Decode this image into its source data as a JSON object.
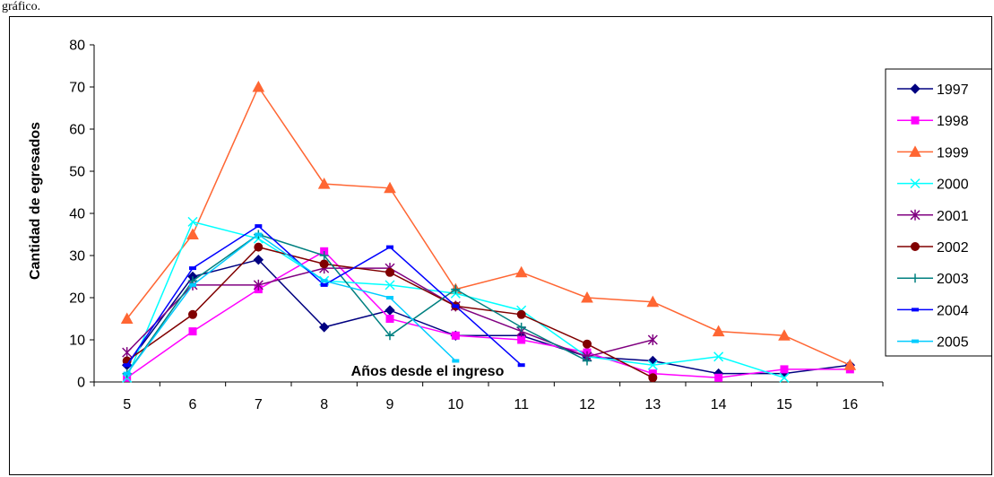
{
  "caption": "gráfico.",
  "chart_data": {
    "type": "line",
    "xlabel": "Años desde el ingreso",
    "ylabel": "Cantidad de egresados",
    "x": [
      5,
      6,
      7,
      8,
      9,
      10,
      11,
      12,
      13,
      14,
      15,
      16
    ],
    "ylim": [
      0,
      80
    ],
    "yticks": [
      0,
      10,
      20,
      30,
      40,
      50,
      60,
      70,
      80
    ],
    "grid": false,
    "legend_position": "right",
    "series": [
      {
        "name": "1997",
        "color": "#000080",
        "marker": "diamond",
        "values": [
          4,
          25,
          29,
          13,
          17,
          11,
          11,
          6,
          5,
          2,
          2,
          4
        ]
      },
      {
        "name": "1998",
        "color": "#ff00ff",
        "marker": "square",
        "values": [
          1,
          12,
          22,
          31,
          15,
          11,
          10,
          7,
          2,
          1,
          3,
          3
        ]
      },
      {
        "name": "1999",
        "color": "#ff6633",
        "marker": "triangle",
        "values": [
          15,
          35,
          70,
          47,
          46,
          22,
          26,
          20,
          19,
          12,
          11,
          4
        ]
      },
      {
        "name": "2000",
        "color": "#00ffff",
        "marker": "x",
        "values": [
          1,
          38,
          34,
          24,
          23,
          21,
          17,
          6,
          4,
          6,
          1,
          null
        ]
      },
      {
        "name": "2001",
        "color": "#800080",
        "marker": "star",
        "values": [
          7,
          23,
          23,
          27,
          27,
          18,
          12,
          6,
          10,
          null,
          null,
          null
        ]
      },
      {
        "name": "2002",
        "color": "#800000",
        "marker": "circle",
        "values": [
          5,
          16,
          32,
          28,
          26,
          18,
          16,
          9,
          1,
          null,
          null,
          null
        ]
      },
      {
        "name": "2003",
        "color": "#008080",
        "marker": "plus",
        "values": [
          2,
          24,
          35,
          30,
          11,
          22,
          13,
          5,
          null,
          null,
          null,
          null
        ]
      },
      {
        "name": "2004",
        "color": "#0000ff",
        "marker": "dash",
        "values": [
          4,
          27,
          37,
          23,
          32,
          18,
          4,
          null,
          null,
          null,
          null,
          null
        ]
      },
      {
        "name": "2005",
        "color": "#00ccff",
        "marker": "dash",
        "values": [
          2,
          23,
          35,
          24,
          20,
          5,
          null,
          null,
          null,
          null,
          null,
          null
        ]
      }
    ]
  }
}
